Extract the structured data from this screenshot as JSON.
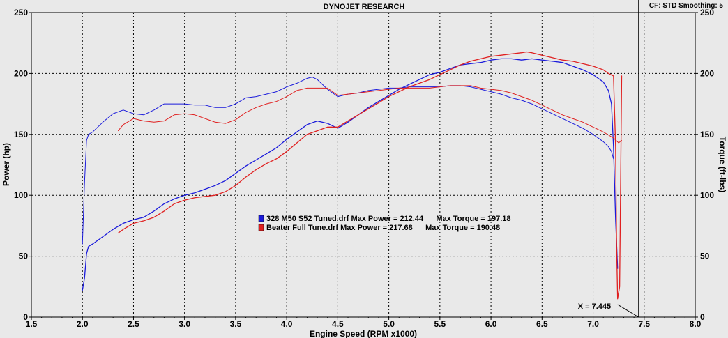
{
  "chart_data": {
    "type": "line",
    "title": "DYNOJET RESEARCH",
    "header_right": "CF: STD  Smoothing: 5",
    "xlabel": "Engine Speed (RPM x1000)",
    "ylabel_left": "Power (hp)",
    "ylabel_right": "Torque (ft-lbs)",
    "xlim": [
      1.5,
      8.0
    ],
    "ylim": [
      0,
      250
    ],
    "x_ticks": [
      "1.5",
      "2.0",
      "2.5",
      "3.0",
      "3.5",
      "4.0",
      "4.5",
      "5.0",
      "5.5",
      "6.0",
      "6.5",
      "7.0",
      "7.5",
      "8.0"
    ],
    "y_ticks": [
      "0",
      "50",
      "100",
      "150",
      "200",
      "250"
    ],
    "cursor_x": 7.445,
    "cursor_label": "X = 7.445",
    "grid": true,
    "legend": [
      {
        "text": "328 M50 S52 Tuned.drf Max Power = 212.44      Max Torque = 197.18",
        "color": "#1a1adb"
      },
      {
        "text": "Beater Full Tune.drf Max Power = 217.68      Max Torque = 190.48",
        "color": "#e02020"
      }
    ],
    "series": [
      {
        "name": "328 M50 S52 Tuned.drf",
        "kind": "power",
        "color": "#1a1adb",
        "points": [
          [
            2.0,
            22
          ],
          [
            2.02,
            32
          ],
          [
            2.04,
            52
          ],
          [
            2.06,
            58
          ],
          [
            2.1,
            60
          ],
          [
            2.2,
            66
          ],
          [
            2.3,
            72
          ],
          [
            2.4,
            77
          ],
          [
            2.5,
            80
          ],
          [
            2.6,
            82
          ],
          [
            2.7,
            87
          ],
          [
            2.8,
            93
          ],
          [
            2.9,
            97
          ],
          [
            3.0,
            100
          ],
          [
            3.1,
            102
          ],
          [
            3.2,
            105
          ],
          [
            3.3,
            108
          ],
          [
            3.4,
            112
          ],
          [
            3.5,
            118
          ],
          [
            3.6,
            124
          ],
          [
            3.7,
            129
          ],
          [
            3.8,
            134
          ],
          [
            3.9,
            139
          ],
          [
            4.0,
            146
          ],
          [
            4.1,
            152
          ],
          [
            4.2,
            158
          ],
          [
            4.3,
            161
          ],
          [
            4.4,
            159
          ],
          [
            4.5,
            155
          ],
          [
            4.6,
            160
          ],
          [
            4.7,
            166
          ],
          [
            4.8,
            172
          ],
          [
            4.9,
            177
          ],
          [
            5.0,
            182
          ],
          [
            5.1,
            187
          ],
          [
            5.2,
            191
          ],
          [
            5.3,
            195
          ],
          [
            5.4,
            199
          ],
          [
            5.5,
            201
          ],
          [
            5.6,
            204
          ],
          [
            5.7,
            207
          ],
          [
            5.8,
            208
          ],
          [
            5.9,
            209
          ],
          [
            6.0,
            211
          ],
          [
            6.1,
            212
          ],
          [
            6.2,
            212
          ],
          [
            6.3,
            211
          ],
          [
            6.4,
            212
          ],
          [
            6.5,
            211
          ],
          [
            6.6,
            210
          ],
          [
            6.7,
            209
          ],
          [
            6.8,
            206
          ],
          [
            6.9,
            203
          ],
          [
            7.0,
            199
          ],
          [
            7.1,
            193
          ],
          [
            7.15,
            186
          ],
          [
            7.18,
            175
          ],
          [
            7.2,
            140
          ],
          [
            7.22,
            80
          ],
          [
            7.24,
            40
          ]
        ]
      },
      {
        "name": "328 M50 S52 Tuned.drf",
        "kind": "torque",
        "color": "#1a1adb",
        "points": [
          [
            2.0,
            60
          ],
          [
            2.02,
            110
          ],
          [
            2.04,
            145
          ],
          [
            2.06,
            150
          ],
          [
            2.1,
            152
          ],
          [
            2.2,
            160
          ],
          [
            2.3,
            167
          ],
          [
            2.4,
            170
          ],
          [
            2.5,
            167
          ],
          [
            2.6,
            166
          ],
          [
            2.7,
            170
          ],
          [
            2.8,
            175
          ],
          [
            2.9,
            175
          ],
          [
            3.0,
            175
          ],
          [
            3.1,
            174
          ],
          [
            3.2,
            174
          ],
          [
            3.3,
            172
          ],
          [
            3.4,
            172
          ],
          [
            3.5,
            175
          ],
          [
            3.6,
            180
          ],
          [
            3.7,
            181
          ],
          [
            3.8,
            183
          ],
          [
            3.9,
            185
          ],
          [
            4.0,
            189
          ],
          [
            4.1,
            192
          ],
          [
            4.2,
            196
          ],
          [
            4.25,
            197
          ],
          [
            4.3,
            195
          ],
          [
            4.4,
            187
          ],
          [
            4.5,
            181
          ],
          [
            4.6,
            183
          ],
          [
            4.7,
            184
          ],
          [
            4.8,
            186
          ],
          [
            4.9,
            187
          ],
          [
            5.0,
            188
          ],
          [
            5.1,
            188
          ],
          [
            5.2,
            189
          ],
          [
            5.3,
            189
          ],
          [
            5.4,
            189
          ],
          [
            5.5,
            189
          ],
          [
            5.6,
            190
          ],
          [
            5.7,
            190
          ],
          [
            5.8,
            189
          ],
          [
            5.9,
            187
          ],
          [
            6.0,
            185
          ],
          [
            6.1,
            183
          ],
          [
            6.2,
            180
          ],
          [
            6.3,
            178
          ],
          [
            6.4,
            175
          ],
          [
            6.5,
            171
          ],
          [
            6.6,
            167
          ],
          [
            6.7,
            163
          ],
          [
            6.8,
            159
          ],
          [
            6.9,
            155
          ],
          [
            7.0,
            150
          ],
          [
            7.1,
            144
          ],
          [
            7.15,
            140
          ],
          [
            7.18,
            136
          ],
          [
            7.2,
            130
          ]
        ]
      },
      {
        "name": "Beater Full Tune.drf",
        "kind": "power",
        "color": "#e02020",
        "points": [
          [
            2.35,
            69
          ],
          [
            2.4,
            72
          ],
          [
            2.5,
            77
          ],
          [
            2.6,
            79
          ],
          [
            2.7,
            82
          ],
          [
            2.8,
            87
          ],
          [
            2.9,
            93
          ],
          [
            3.0,
            96
          ],
          [
            3.1,
            98
          ],
          [
            3.2,
            99
          ],
          [
            3.3,
            100
          ],
          [
            3.4,
            103
          ],
          [
            3.5,
            108
          ],
          [
            3.6,
            115
          ],
          [
            3.7,
            121
          ],
          [
            3.8,
            126
          ],
          [
            3.9,
            130
          ],
          [
            4.0,
            136
          ],
          [
            4.1,
            143
          ],
          [
            4.2,
            150
          ],
          [
            4.3,
            153
          ],
          [
            4.4,
            156
          ],
          [
            4.5,
            156
          ],
          [
            4.6,
            161
          ],
          [
            4.7,
            166
          ],
          [
            4.8,
            171
          ],
          [
            4.9,
            176
          ],
          [
            5.0,
            181
          ],
          [
            5.1,
            185
          ],
          [
            5.2,
            189
          ],
          [
            5.3,
            192
          ],
          [
            5.4,
            195
          ],
          [
            5.5,
            199
          ],
          [
            5.6,
            203
          ],
          [
            5.7,
            207
          ],
          [
            5.8,
            210
          ],
          [
            5.9,
            212
          ],
          [
            6.0,
            214
          ],
          [
            6.1,
            215
          ],
          [
            6.2,
            216
          ],
          [
            6.3,
            217
          ],
          [
            6.35,
            217.7
          ],
          [
            6.4,
            217
          ],
          [
            6.5,
            215
          ],
          [
            6.6,
            213
          ],
          [
            6.7,
            211
          ],
          [
            6.8,
            210
          ],
          [
            6.9,
            208
          ],
          [
            7.0,
            206
          ],
          [
            7.1,
            203
          ],
          [
            7.15,
            200
          ],
          [
            7.2,
            198
          ],
          [
            7.22,
            140
          ],
          [
            7.23,
            60
          ],
          [
            7.24,
            15
          ],
          [
            7.26,
            25
          ],
          [
            7.28,
            198
          ]
        ]
      },
      {
        "name": "Beater Full Tune.drf",
        "kind": "torque",
        "color": "#e02020",
        "points": [
          [
            2.35,
            153
          ],
          [
            2.4,
            158
          ],
          [
            2.5,
            163
          ],
          [
            2.6,
            161
          ],
          [
            2.7,
            160
          ],
          [
            2.8,
            161
          ],
          [
            2.9,
            166
          ],
          [
            3.0,
            167
          ],
          [
            3.1,
            166
          ],
          [
            3.2,
            163
          ],
          [
            3.3,
            160
          ],
          [
            3.4,
            159
          ],
          [
            3.5,
            162
          ],
          [
            3.6,
            168
          ],
          [
            3.7,
            172
          ],
          [
            3.8,
            175
          ],
          [
            3.9,
            177
          ],
          [
            4.0,
            181
          ],
          [
            4.1,
            186
          ],
          [
            4.2,
            188
          ],
          [
            4.3,
            188
          ],
          [
            4.4,
            188
          ],
          [
            4.5,
            182
          ],
          [
            4.6,
            183
          ],
          [
            4.7,
            184
          ],
          [
            4.8,
            185
          ],
          [
            4.9,
            186
          ],
          [
            5.0,
            187
          ],
          [
            5.1,
            188
          ],
          [
            5.2,
            188
          ],
          [
            5.3,
            188
          ],
          [
            5.4,
            188
          ],
          [
            5.5,
            189
          ],
          [
            5.6,
            190
          ],
          [
            5.7,
            190
          ],
          [
            5.8,
            190
          ],
          [
            5.9,
            188
          ],
          [
            6.0,
            187
          ],
          [
            6.1,
            186
          ],
          [
            6.2,
            184
          ],
          [
            6.3,
            181
          ],
          [
            6.4,
            178
          ],
          [
            6.5,
            174
          ],
          [
            6.6,
            170
          ],
          [
            6.7,
            166
          ],
          [
            6.8,
            163
          ],
          [
            6.9,
            160
          ],
          [
            7.0,
            156
          ],
          [
            7.1,
            152
          ],
          [
            7.2,
            147
          ],
          [
            7.25,
            143
          ],
          [
            7.28,
            145
          ]
        ]
      }
    ]
  }
}
